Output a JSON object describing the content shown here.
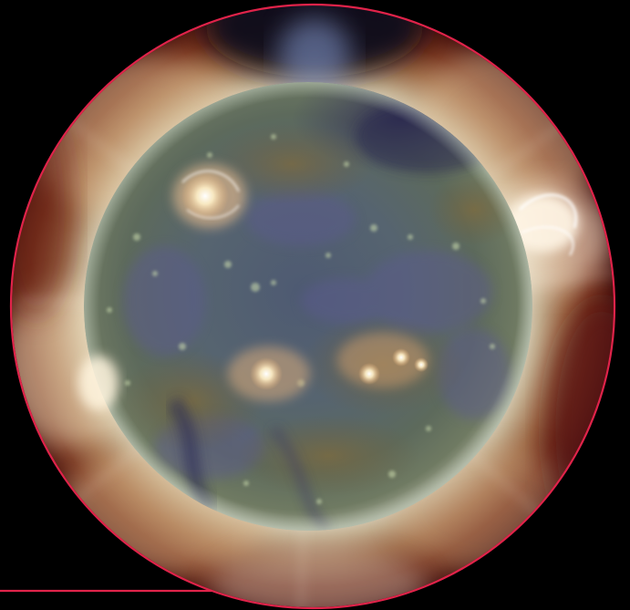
{
  "scene": {
    "subject": "sun-corona-composite",
    "colors": {
      "background": "#000000",
      "frame_ring": "#e0234a",
      "underline_rule": "#e0234a",
      "disk_core": "#4b5a6e",
      "disk_mid": "#5e6a5e",
      "corona_inner": "#e9e3cf",
      "corona_warm": "#c98a5a",
      "corona_outer": "#7a2a1e",
      "active_region": "#fff3d6",
      "coronal_hole": "#2a2748"
    }
  }
}
